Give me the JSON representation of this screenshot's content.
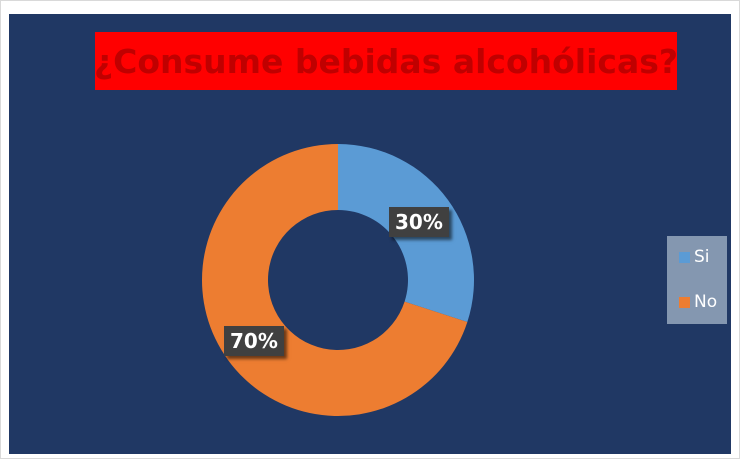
{
  "chart_data": {
    "type": "pie",
    "variant": "doughnut",
    "title": "¿Consume bebidas alcohólicas?",
    "categories": [
      "Si",
      "No"
    ],
    "values": [
      30,
      70
    ],
    "data_labels": [
      "30%",
      "70%"
    ],
    "colors": [
      "#5b9bd5",
      "#ed7d31"
    ],
    "legend_position": "right",
    "background_color": "#203864",
    "title_box_color": "#ff0000",
    "title_text_color": "#c00000"
  }
}
